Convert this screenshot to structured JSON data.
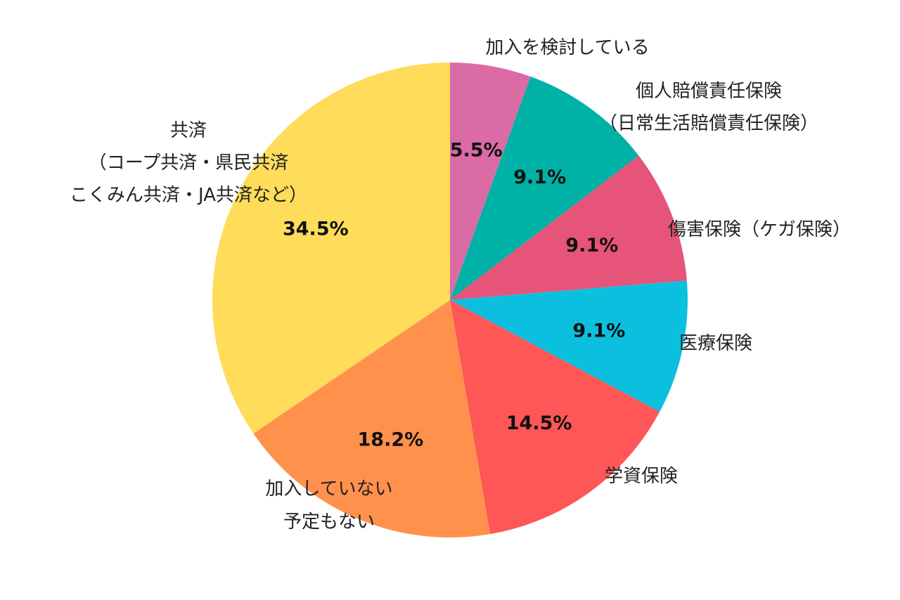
{
  "chart_data": {
    "type": "pie",
    "start": "12 o'clock",
    "direction": "clockwise",
    "slices": [
      {
        "label": [
          "加入を検討している"
        ],
        "value": 5.5,
        "display": "5.5%",
        "color": "#DB6BA5"
      },
      {
        "label": [
          "個人賠償責任保険",
          "（日常生活賠償責任保険）"
        ],
        "value": 9.1,
        "display": "9.1%",
        "color": "#00B1A5"
      },
      {
        "label": [
          "傷害保険（ケガ保険）"
        ],
        "value": 9.1,
        "display": "9.1%",
        "color": "#E6547A"
      },
      {
        "label": [
          "医療保険"
        ],
        "value": 9.1,
        "display": "9.1%",
        "color": "#0BC0DE"
      },
      {
        "label": [
          "学資保険"
        ],
        "value": 14.5,
        "display": "14.5%",
        "color": "#FF5657"
      },
      {
        "label": [
          "加入していない",
          "予定もない"
        ],
        "value": 18.2,
        "display": "18.2%",
        "color": "#FF914D"
      },
      {
        "label": [
          "共済",
          "（コープ共済・県民共済",
          "こくみん共済・JA共済など）"
        ],
        "value": 34.5,
        "display": "34.5%",
        "color": "#FFDC5A"
      }
    ]
  }
}
